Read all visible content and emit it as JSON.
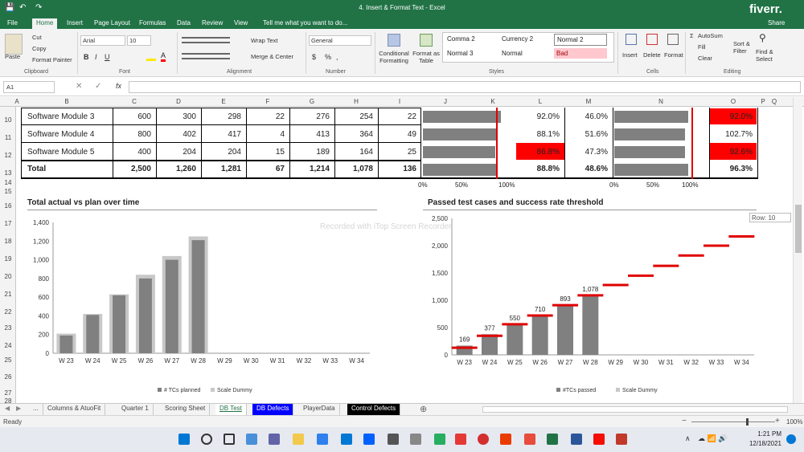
{
  "window": {
    "title": "4. Insert & Format Text - Excel",
    "watermark": "fiverr.",
    "recorder": "Recorded with iTop Screen Recorder"
  },
  "ribbon_tabs": [
    "File",
    "Home",
    "Insert",
    "Page Layout",
    "Formulas",
    "Data",
    "Review",
    "View"
  ],
  "tell_me": "Tell me what you want to do...",
  "share": "Share",
  "ribbon": {
    "clipboard": {
      "paste": "Paste",
      "cut": "Cut",
      "copy": "Copy",
      "format_painter": "Format Painter",
      "label": "Clipboard"
    },
    "font": {
      "name": "Arial",
      "size": "10",
      "label": "Font"
    },
    "alignment": {
      "wrap": "Wrap Text",
      "merge": "Merge & Center",
      "label": "Alignment"
    },
    "number": {
      "format": "General",
      "currency": "$",
      "percent": "%",
      "comma": ",",
      "label": "Number"
    },
    "cond_format": "Conditional Formatting",
    "format_table": "Format as Table",
    "styles": {
      "comma2": "Comma 2",
      "currency2": "Currency 2",
      "normal2": "Normal 2",
      "normal3": "Normal 3",
      "normal": "Normal",
      "bad": "Bad",
      "label": "Styles"
    },
    "cells": {
      "insert": "Insert",
      "delete": "Delete",
      "format": "Format",
      "label": "Cells"
    },
    "editing": {
      "autosum": "AutoSum",
      "fill": "Fill",
      "clear": "Clear",
      "sort": "Sort & Filter",
      "find": "Find & Select",
      "label": "Editing"
    }
  },
  "formula_bar": {
    "name_box": "A1",
    "fx": "fx",
    "value": ""
  },
  "columns": [
    "A",
    "B",
    "C",
    "D",
    "E",
    "F",
    "G",
    "H",
    "I",
    "J",
    "K",
    "L",
    "M",
    "N",
    "O",
    "P",
    "Q"
  ],
  "rows": [
    "10",
    "11",
    "12",
    "13",
    "14",
    "15",
    "16",
    "17",
    "18",
    "19",
    "20",
    "21",
    "22",
    "23",
    "24",
    "25",
    "26",
    "27",
    "28"
  ],
  "table": {
    "rows": [
      {
        "name": "Software Module 3",
        "c": "600",
        "d": "300",
        "e": "298",
        "f": "22",
        "g": "276",
        "h": "254",
        "i": "22",
        "l": "92.0%",
        "m": "46.0%",
        "o": "92.0%",
        "j_pct": 0.92,
        "n_pct": 0.92,
        "l_red": false,
        "o_red": true
      },
      {
        "name": "Software Module 4",
        "c": "800",
        "d": "402",
        "e": "417",
        "f": "4",
        "g": "413",
        "h": "364",
        "i": "49",
        "l": "88.1%",
        "m": "51.6%",
        "o": "102.7%",
        "j_pct": 0.88,
        "n_pct": 0.88,
        "l_red": false,
        "o_red": false
      },
      {
        "name": "Software Module 5",
        "c": "400",
        "d": "204",
        "e": "204",
        "f": "15",
        "g": "189",
        "h": "164",
        "i": "25",
        "l": "86.8%",
        "m": "47.3%",
        "o": "92.6%",
        "j_pct": 0.87,
        "n_pct": 0.87,
        "l_red": true,
        "o_red": true
      }
    ],
    "total": {
      "name": "Total",
      "c": "2,500",
      "d": "1,260",
      "e": "1,281",
      "f": "67",
      "g": "1,214",
      "h": "1,078",
      "i": "136",
      "l": "88.8%",
      "m": "48.6%",
      "o": "96.3%",
      "j_pct": 0.89,
      "n_pct": 0.92
    },
    "axis_labels": [
      "0%",
      "50%",
      "100%"
    ]
  },
  "row_tooltip": "Row: 10",
  "chart_data": [
    {
      "type": "bar",
      "title": "Total actual vs plan over time",
      "categories": [
        "W 23",
        "W 24",
        "W 25",
        "W 26",
        "W 27",
        "W 28",
        "W 29",
        "W 30",
        "W 31",
        "W 32",
        "W 33",
        "W 34"
      ],
      "series": [
        {
          "name": "# TCs planned",
          "values": [
            210,
            420,
            630,
            840,
            1040,
            1250,
            null,
            null,
            null,
            null,
            null,
            null
          ]
        },
        {
          "name": "Scale Dummy",
          "values": [
            190,
            410,
            620,
            800,
            1000,
            1210,
            null,
            null,
            null,
            null,
            null,
            null
          ]
        }
      ],
      "ylim": [
        0,
        1400
      ],
      "yticks": [
        "0",
        "200",
        "400",
        "600",
        "800",
        "1,000",
        "1,200",
        "1,400"
      ],
      "grid": false,
      "legend": "bottom"
    },
    {
      "type": "bar",
      "title": "Passed test cases and success rate threshold",
      "categories": [
        "W 23",
        "W 24",
        "W 25",
        "W 26",
        "W 27",
        "W 28",
        "W 29",
        "W 30",
        "W 31",
        "W 32",
        "W 33",
        "W 34"
      ],
      "series": [
        {
          "name": "#TCs passed",
          "values": [
            169,
            377,
            550,
            710,
            893,
            1078,
            null,
            null,
            null,
            null,
            null,
            null
          ]
        },
        {
          "name": "Scale Dummy",
          "values": [
            130,
            350,
            560,
            720,
            910,
            1090,
            1280,
            1450,
            1630,
            1820,
            2000,
            2170
          ]
        }
      ],
      "data_labels": [
        "169",
        "377",
        "550",
        "710",
        "893",
        "1,078"
      ],
      "ylim": [
        0,
        2500
      ],
      "yticks": [
        "0",
        "500",
        "1,000",
        "1,500",
        "2,000",
        "2,500"
      ],
      "grid": false,
      "legend": "bottom",
      "threshold_color": "#e00000"
    }
  ],
  "sheet_tabs": [
    {
      "label": "...",
      "style": "normal"
    },
    {
      "label": "Columns & AtuoFit",
      "style": "normal"
    },
    {
      "label": "Quarter 1",
      "style": "normal"
    },
    {
      "label": "Scoring Sheet",
      "style": "normal"
    },
    {
      "label": "DB Test",
      "style": "active"
    },
    {
      "label": "DB Defects",
      "style": "blue"
    },
    {
      "label": "PlayerData",
      "style": "normal"
    },
    {
      "label": "Control Defects",
      "style": "black"
    }
  ],
  "status": {
    "ready": "Ready",
    "zoom": "100%"
  },
  "taskbar": {
    "time": "1:21 PM",
    "date": "12/18/2021"
  },
  "colors": {
    "excel_green": "#217346",
    "bar_gray": "#808080",
    "bar_light": "#c8c8c8",
    "red": "#ff0000"
  }
}
